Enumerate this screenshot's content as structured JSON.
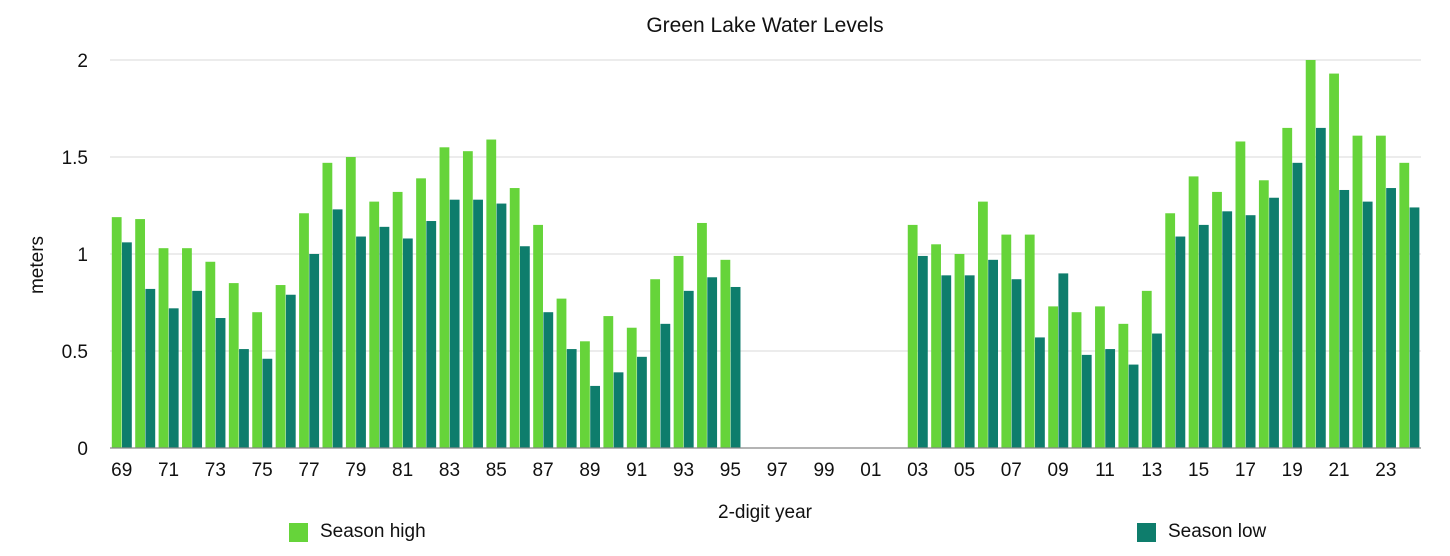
{
  "chart_data": {
    "type": "bar",
    "title": "Green Lake Water Levels",
    "xlabel": "2-digit year",
    "ylabel": "meters",
    "ylim": [
      0,
      2
    ],
    "yticks": [
      "0",
      "0.5",
      "1",
      "1.5",
      "2"
    ],
    "grid": true,
    "legend_position": "bottom",
    "categories": [
      "69",
      "70",
      "71",
      "72",
      "73",
      "74",
      "75",
      "76",
      "77",
      "78",
      "79",
      "80",
      "81",
      "82",
      "83",
      "84",
      "85",
      "86",
      "87",
      "88",
      "89",
      "90",
      "91",
      "92",
      "93",
      "94",
      "95",
      "96",
      "97",
      "98",
      "99",
      "00",
      "01",
      "02",
      "03",
      "04",
      "05",
      "06",
      "07",
      "08",
      "09",
      "10",
      "11",
      "12",
      "13",
      "14",
      "15",
      "16",
      "17",
      "18",
      "19",
      "20",
      "21",
      "22",
      "23",
      "24"
    ],
    "tick_labels": [
      "69",
      "",
      "71",
      "",
      "73",
      "",
      "75",
      "",
      "77",
      "",
      "79",
      "",
      "81",
      "",
      "83",
      "",
      "85",
      "",
      "87",
      "",
      "89",
      "",
      "91",
      "",
      "93",
      "",
      "95",
      "",
      "97",
      "",
      "99",
      "",
      "01",
      "",
      "03",
      "",
      "05",
      "",
      "07",
      "",
      "09",
      "",
      "11",
      "",
      "13",
      "",
      "15",
      "",
      "17",
      "",
      "19",
      "",
      "21",
      "",
      "23",
      ""
    ],
    "series": [
      {
        "name": "Season high",
        "color": "#66d43a",
        "values": [
          1.19,
          1.18,
          1.03,
          1.03,
          0.96,
          0.85,
          0.7,
          0.84,
          1.21,
          1.47,
          1.5,
          1.27,
          1.32,
          1.39,
          1.55,
          1.53,
          1.59,
          1.34,
          1.15,
          0.77,
          0.55,
          0.68,
          0.62,
          0.87,
          0.99,
          1.16,
          0.97,
          null,
          null,
          null,
          null,
          null,
          null,
          null,
          1.15,
          1.05,
          1.0,
          1.27,
          1.1,
          1.1,
          0.73,
          0.7,
          0.73,
          0.64,
          0.81,
          1.21,
          1.4,
          1.32,
          1.58,
          1.38,
          1.65,
          2.0,
          1.93,
          1.61,
          1.61,
          1.47
        ]
      },
      {
        "name": "Season low",
        "color": "#0e7d6c",
        "values": [
          1.06,
          0.82,
          0.72,
          0.81,
          0.67,
          0.51,
          0.46,
          0.79,
          1.0,
          1.23,
          1.09,
          1.14,
          1.08,
          1.17,
          1.28,
          1.28,
          1.26,
          1.04,
          0.7,
          0.51,
          0.32,
          0.39,
          0.47,
          0.64,
          0.81,
          0.88,
          0.83,
          null,
          null,
          null,
          null,
          null,
          null,
          null,
          0.99,
          0.89,
          0.89,
          0.97,
          0.87,
          0.57,
          0.9,
          0.48,
          0.51,
          0.43,
          0.59,
          1.09,
          1.15,
          1.22,
          1.2,
          1.29,
          1.47,
          1.65,
          1.33,
          1.27,
          1.34,
          1.24
        ]
      }
    ]
  }
}
